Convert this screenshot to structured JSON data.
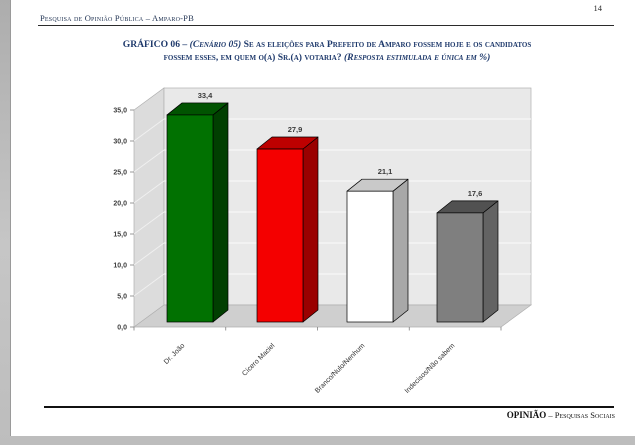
{
  "page": {
    "number": "14"
  },
  "header": {
    "running_title": "Pesquisa de Opinião Pública – Amparo-PB"
  },
  "title": {
    "line1_prefix": "GRÁFICO 06 – ",
    "line1_scenario": "(Cenário 05)",
    "line1_text": " Se as eleições para Prefeito de Amparo fossem hoje e os candidatos",
    "line2_text": "fossem esses, em quem o(a) Sr.(a) votaria? ",
    "line2_note": "(Resposta estimulada e única em %)",
    "color": "#1f3a6c"
  },
  "footer": {
    "brand": "OPINIÃO",
    "suffix": " – Pesquisas Sociais"
  },
  "chart_data": {
    "type": "bar",
    "style": "3d-column",
    "title": "Se as eleições para Prefeito de Amparo fossem hoje e os candidatos fossem esses, em quem o(a) Sr.(a) votaria? (Resposta estimulada e única em %)",
    "categories": [
      "Dr. João",
      "Cícero Maciel",
      "Branco/Nulo/Nenhum",
      "Indecisos/Não sabem"
    ],
    "values": [
      33.4,
      27.9,
      21.1,
      17.6
    ],
    "value_labels": [
      "33,4",
      "27,9",
      "21,1",
      "17,6"
    ],
    "xlabel": "",
    "ylabel": "",
    "ylim": [
      0,
      35
    ],
    "ytick_step": 5,
    "ytick_labels": [
      "0,0",
      "5,0",
      "10,0",
      "15,0",
      "20,0",
      "25,0",
      "30,0",
      "35,0"
    ],
    "grid": true,
    "legend": "none",
    "bar_colors_front": [
      "#017101",
      "#f40000",
      "#ffffff",
      "#7f7f7f"
    ],
    "bar_colors_top": [
      "#015301",
      "#bd0000",
      "#c9c9c9",
      "#515151"
    ],
    "bar_colors_side": [
      "#013f01",
      "#9a0000",
      "#a8a8a8",
      "#636363"
    ],
    "colors": {
      "wall_back": "#e9e9e9",
      "wall_side": "#dcdcdc",
      "floor": "#cfcfcf",
      "edge": "#b0b0b0",
      "gridline": "#fafafa",
      "axis": "#808080",
      "tick_label": "#3d3d3d",
      "value_label": "#3a3a3a",
      "category_label": "#333333"
    }
  }
}
